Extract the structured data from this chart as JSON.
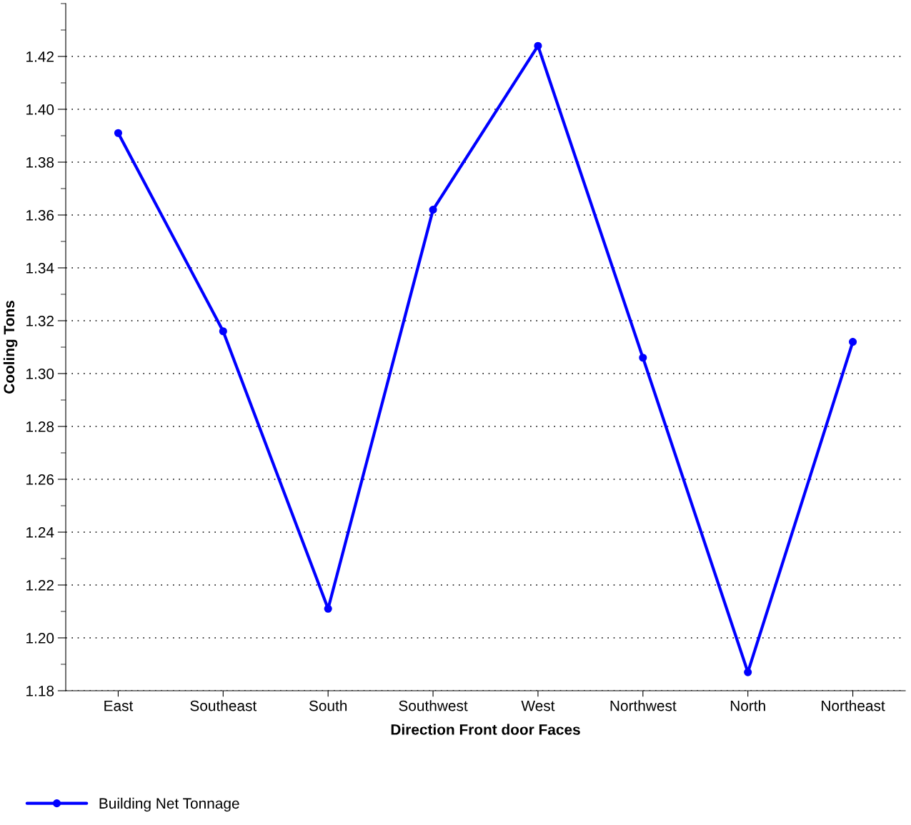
{
  "chart_data": {
    "type": "line",
    "xlabel": "Direction Front door Faces",
    "ylabel": "Cooling Tons",
    "categories": [
      "East",
      "Southeast",
      "South",
      "Southwest",
      "West",
      "Northwest",
      "North",
      "Northeast"
    ],
    "series": [
      {
        "name": "Building Net Tonnage",
        "color": "#0000ff",
        "values": [
          1.391,
          1.316,
          1.211,
          1.362,
          1.424,
          1.306,
          1.187,
          1.312
        ]
      }
    ],
    "ylim": [
      1.18,
      1.44
    ],
    "yticks": [
      1.18,
      {
        "value": 1.2,
        "label": "1.20"
      },
      1.22,
      1.24,
      1.26,
      1.28,
      {
        "value": 1.3,
        "label": "1.30"
      },
      1.32,
      1.34,
      1.36,
      1.38,
      {
        "value": 1.4,
        "label": "1.40"
      },
      1.42
    ],
    "grid": "y",
    "legend": "bottom left",
    "marker": "circle",
    "line_style": "solid"
  }
}
